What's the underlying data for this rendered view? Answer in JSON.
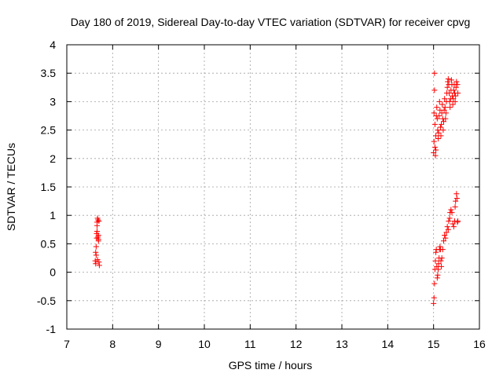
{
  "chart_data": {
    "type": "scatter",
    "title": "Day 180 of 2019, Sidereal Day-to-day VTEC variation (SDTVAR) for receiver cpvg",
    "xlabel": "GPS time / hours",
    "ylabel": "SDTVAR / TECUs",
    "xlim": [
      7,
      16
    ],
    "ylim": [
      -1,
      4
    ],
    "xticks": [
      "7",
      "8",
      "9",
      "10",
      "11",
      "12",
      "13",
      "14",
      "15",
      "16"
    ],
    "yticks": [
      "-1",
      "-0.5",
      "0",
      "0.5",
      "1",
      "1.5",
      "2",
      "2.5",
      "3",
      "3.5",
      "4"
    ],
    "grid": true,
    "marker": "plus",
    "series": [
      {
        "color": "#ff0000",
        "points": [
          [
            7.62,
            0.2
          ],
          [
            7.63,
            0.15
          ],
          [
            7.64,
            0.3
          ],
          [
            7.64,
            0.45
          ],
          [
            7.65,
            0.6
          ],
          [
            7.65,
            0.68
          ],
          [
            7.66,
            0.82
          ],
          [
            7.66,
            0.88
          ],
          [
            7.67,
            0.95
          ],
          [
            7.68,
            0.92
          ],
          [
            7.68,
            0.62
          ],
          [
            7.69,
            0.55
          ],
          [
            7.69,
            0.65
          ],
          [
            7.7,
            0.9
          ],
          [
            7.7,
            0.18
          ],
          [
            7.71,
            0.12
          ],
          [
            7.67,
            0.22
          ],
          [
            7.66,
            0.72
          ],
          [
            7.69,
            0.58
          ],
          [
            7.63,
            0.35
          ],
          [
            15.0,
            2.1
          ],
          [
            15.01,
            2.3
          ],
          [
            15.01,
            2.8
          ],
          [
            15.02,
            3.5
          ],
          [
            15.02,
            3.2
          ],
          [
            15.03,
            2.6
          ],
          [
            15.03,
            2.2
          ],
          [
            15.04,
            2.05
          ],
          [
            15.05,
            2.15
          ],
          [
            15.05,
            2.4
          ],
          [
            15.06,
            2.75
          ],
          [
            15.07,
            2.9
          ],
          [
            15.08,
            2.7
          ],
          [
            15.09,
            2.5
          ],
          [
            15.1,
            2.35
          ],
          [
            15.11,
            2.45
          ],
          [
            15.12,
            2.75
          ],
          [
            15.13,
            3.0
          ],
          [
            15.14,
            2.85
          ],
          [
            15.15,
            2.55
          ],
          [
            15.16,
            2.4
          ],
          [
            15.17,
            2.6
          ],
          [
            15.18,
            2.8
          ],
          [
            15.19,
            2.95
          ],
          [
            15.2,
            2.7
          ],
          [
            15.21,
            2.5
          ],
          [
            15.22,
            2.65
          ],
          [
            15.23,
            2.85
          ],
          [
            15.24,
            3.05
          ],
          [
            15.25,
            2.9
          ],
          [
            15.26,
            2.7
          ],
          [
            15.27,
            2.8
          ],
          [
            15.28,
            3.0
          ],
          [
            15.29,
            3.15
          ],
          [
            15.3,
            3.25
          ],
          [
            15.31,
            3.35
          ],
          [
            15.32,
            3.4
          ],
          [
            15.33,
            3.3
          ],
          [
            15.34,
            3.15
          ],
          [
            15.35,
            3.0
          ],
          [
            15.36,
            2.9
          ],
          [
            15.37,
            3.05
          ],
          [
            15.38,
            3.2
          ],
          [
            15.39,
            3.38
          ],
          [
            15.4,
            3.3
          ],
          [
            15.41,
            3.1
          ],
          [
            15.42,
            2.95
          ],
          [
            15.43,
            3.05
          ],
          [
            15.44,
            3.2
          ],
          [
            15.45,
            3.3
          ],
          [
            15.46,
            3.15
          ],
          [
            15.47,
            3.0
          ],
          [
            15.48,
            3.1
          ],
          [
            15.49,
            3.25
          ],
          [
            15.5,
            3.35
          ],
          [
            15.52,
            3.3
          ],
          [
            15.53,
            3.15
          ],
          [
            15.0,
            -0.55
          ],
          [
            15.01,
            -0.45
          ],
          [
            15.02,
            -0.2
          ],
          [
            15.03,
            0.05
          ],
          [
            15.04,
            0.2
          ],
          [
            15.05,
            0.35
          ],
          [
            15.06,
            0.4
          ],
          [
            15.07,
            0.1
          ],
          [
            15.08,
            -0.1
          ],
          [
            15.09,
            -0.05
          ],
          [
            15.1,
            0.05
          ],
          [
            15.11,
            0.15
          ],
          [
            15.12,
            0.25
          ],
          [
            15.13,
            0.4
          ],
          [
            15.14,
            0.45
          ],
          [
            15.15,
            0.4
          ],
          [
            15.16,
            0.2
          ],
          [
            15.17,
            0.1
          ],
          [
            15.18,
            0.25
          ],
          [
            15.2,
            0.4
          ],
          [
            15.22,
            0.55
          ],
          [
            15.24,
            0.65
          ],
          [
            15.26,
            0.6
          ],
          [
            15.28,
            0.7
          ],
          [
            15.3,
            0.8
          ],
          [
            15.32,
            0.75
          ],
          [
            15.33,
            0.9
          ],
          [
            15.35,
            0.95
          ],
          [
            15.36,
            1.05
          ],
          [
            15.38,
            1.1
          ],
          [
            15.4,
            1.05
          ],
          [
            15.42,
            0.85
          ],
          [
            15.44,
            0.8
          ],
          [
            15.46,
            0.9
          ],
          [
            15.47,
            1.15
          ],
          [
            15.48,
            1.25
          ],
          [
            15.5,
            1.38
          ],
          [
            15.51,
            1.3
          ],
          [
            15.52,
            0.88
          ],
          [
            15.53,
            0.9
          ]
        ]
      }
    ]
  }
}
